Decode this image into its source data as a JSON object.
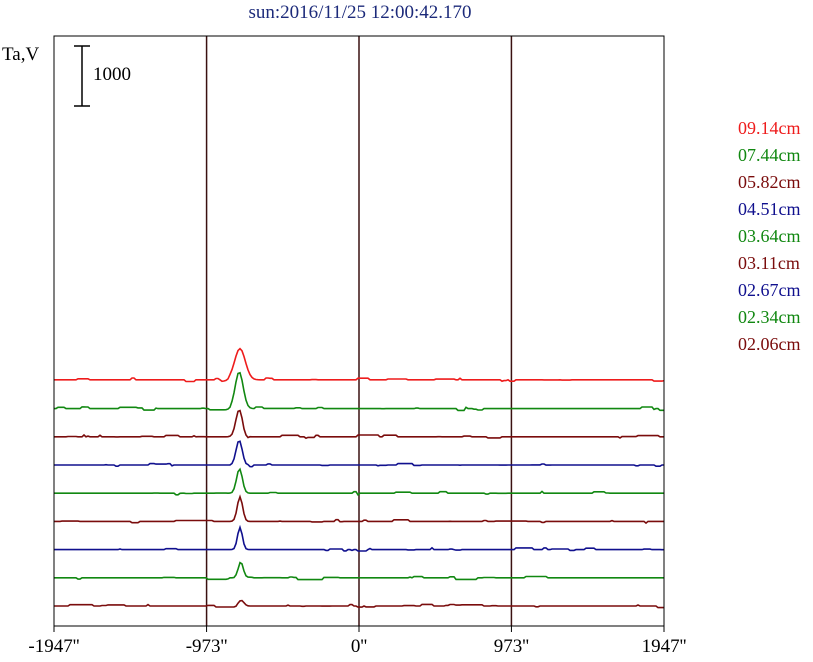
{
  "title": "sun:2016/11/25 12:00:42.170",
  "ylabel": "Ta,V",
  "scale_bar": {
    "label": "1000",
    "value": 1000
  },
  "colors": {
    "red": "#ee1c1c",
    "green": "#118811",
    "darkred": "#7a0c0c",
    "blue": "#10108e",
    "axis": "#000000",
    "grid": "#3a1010"
  },
  "chart_data": {
    "type": "line",
    "title": "sun:2016/11/25 12:00:42.170",
    "ylabel": "Ta,V",
    "xlabel": "",
    "xlim": [
      -1947,
      1947
    ],
    "x_ticks": [
      -1947,
      -973,
      0,
      973,
      1947
    ],
    "x_tick_labels": [
      "-1947''",
      "-973''",
      "0''",
      "973''",
      "1947''"
    ],
    "vertical_gridlines": [
      -973,
      0,
      973
    ],
    "legend_position": "right",
    "series": [
      {
        "name": "09.14cm",
        "color": "#ee1c1c",
        "baseline": 3580,
        "peak_x": -760,
        "peak": 520,
        "width": 48
      },
      {
        "name": "07.44cm",
        "color": "#118811",
        "baseline": 3100,
        "peak_x": -765,
        "peak": 610,
        "width": 36
      },
      {
        "name": "05.82cm",
        "color": "#7a0c0c",
        "baseline": 2630,
        "peak_x": -765,
        "peak": 450,
        "width": 30
      },
      {
        "name": "04.51cm",
        "color": "#10108e",
        "baseline": 2160,
        "peak_x": -765,
        "peak": 420,
        "width": 28
      },
      {
        "name": "03.64cm",
        "color": "#118811",
        "baseline": 1690,
        "peak_x": -763,
        "peak": 400,
        "width": 26
      },
      {
        "name": "03.11cm",
        "color": "#7a0c0c",
        "baseline": 1220,
        "peak_x": -760,
        "peak": 410,
        "width": 24
      },
      {
        "name": "02.67cm",
        "color": "#10108e",
        "baseline": 750,
        "peak_x": -760,
        "peak": 370,
        "width": 22
      },
      {
        "name": "02.34cm",
        "color": "#118811",
        "baseline": 280,
        "peak_x": -755,
        "peak": 255,
        "width": 22
      },
      {
        "name": "02.06cm",
        "color": "#7a0c0c",
        "baseline": -190,
        "peak_x": -752,
        "peak": 95,
        "width": 24
      }
    ]
  }
}
